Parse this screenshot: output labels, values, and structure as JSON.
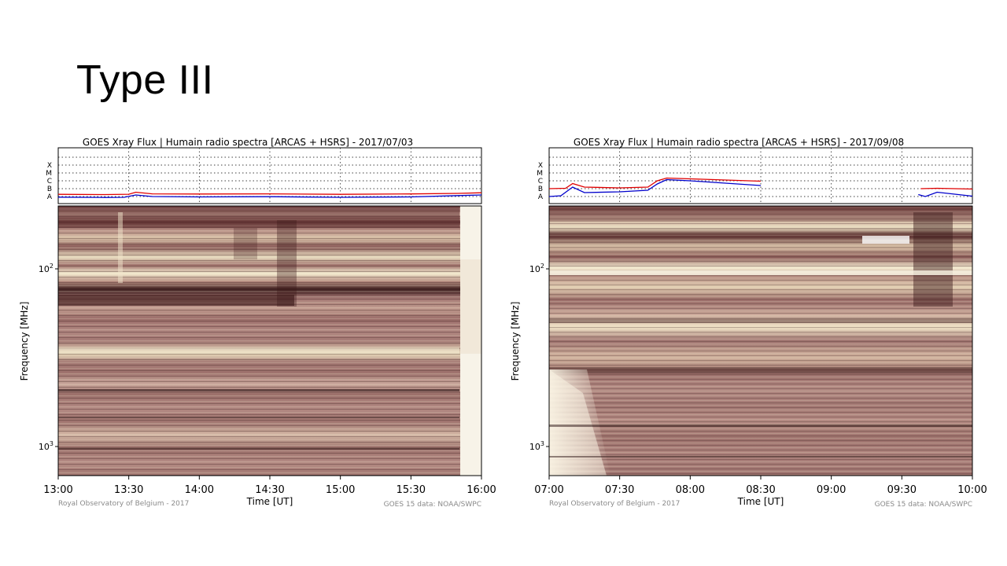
{
  "slide": {
    "title": "Type III"
  },
  "chart_data": [
    {
      "type": "heatmap",
      "title": "GOES Xray Flux | Humain radio spectra [ARCAS + HSRS] - 2017/07/03",
      "xlabel": "Time [UT]",
      "ylabel": "Frequency [MHz]",
      "x_ticks": [
        "13:00",
        "13:30",
        "14:00",
        "14:30",
        "15:00",
        "15:30",
        "16:00"
      ],
      "y_ticks": [
        "10^2",
        "10^3"
      ],
      "y_scale": "log",
      "y_inverted": true,
      "flare_classes": [
        "X",
        "M",
        "C",
        "B",
        "A"
      ],
      "goes_series": [
        {
          "color": "#e00000",
          "x": [
            "13:00",
            "13:20",
            "13:30",
            "13:33",
            "13:40",
            "14:00",
            "14:30",
            "15:00",
            "15:30",
            "15:50",
            "16:00"
          ],
          "level": [
            0.28,
            0.25,
            0.29,
            0.55,
            0.34,
            0.32,
            0.34,
            0.28,
            0.33,
            0.4,
            0.48
          ]
        },
        {
          "color": "#0000cc",
          "x": [
            "13:00",
            "13:20",
            "13:28",
            "13:33",
            "13:40",
            "14:00",
            "14:30",
            "15:00",
            "15:30",
            "15:50",
            "16:00"
          ],
          "level": [
            -0.08,
            -0.12,
            -0.1,
            0.2,
            0.0,
            -0.05,
            -0.02,
            -0.1,
            -0.05,
            0.12,
            0.2
          ]
        }
      ],
      "credit_left": "Royal Observatory of Belgium - 2017",
      "credit_right": "GOES 15 data: NOAA/SWPC"
    },
    {
      "type": "heatmap",
      "title": "GOES Xray Flux | Humain radio spectra [ARCAS + HSRS] - 2017/09/08",
      "xlabel": "Time [UT]",
      "ylabel": "Frequency [MHz]",
      "x_ticks": [
        "07:00",
        "07:30",
        "08:00",
        "08:30",
        "09:00",
        "09:30",
        "10:00"
      ],
      "y_ticks": [
        "10^2",
        "10^3"
      ],
      "y_scale": "log",
      "y_inverted": true,
      "flare_classes": [
        "X",
        "M",
        "C",
        "B",
        "A"
      ],
      "goes_series": [
        {
          "color": "#e00000",
          "x": [
            "07:00",
            "07:07",
            "07:10",
            "07:15",
            "07:30",
            "07:42",
            "07:46",
            "07:50",
            "08:00",
            "08:15",
            "08:30",
            "09:30",
            "09:38",
            "09:45",
            "10:00"
          ],
          "level": [
            1.0,
            1.05,
            1.65,
            1.2,
            1.1,
            1.2,
            2.0,
            2.35,
            2.25,
            2.1,
            1.95,
            null,
            1.0,
            1.05,
            0.95
          ]
        },
        {
          "color": "#0000cc",
          "x": [
            "07:00",
            "07:05",
            "07:10",
            "07:15",
            "07:30",
            "07:42",
            "07:46",
            "07:50",
            "08:00",
            "08:15",
            "08:30",
            "09:30",
            "09:37",
            "09:40",
            "09:45",
            "10:00"
          ],
          "level": [
            0.0,
            0.1,
            1.2,
            0.5,
            0.6,
            0.8,
            1.6,
            2.15,
            2.0,
            1.7,
            1.4,
            null,
            0.25,
            0.0,
            0.55,
            0.05
          ]
        }
      ],
      "credit_left": "Royal Observatory of Belgium - 2017",
      "credit_right": "GOES 15 data: NOAA/SWPC"
    }
  ]
}
